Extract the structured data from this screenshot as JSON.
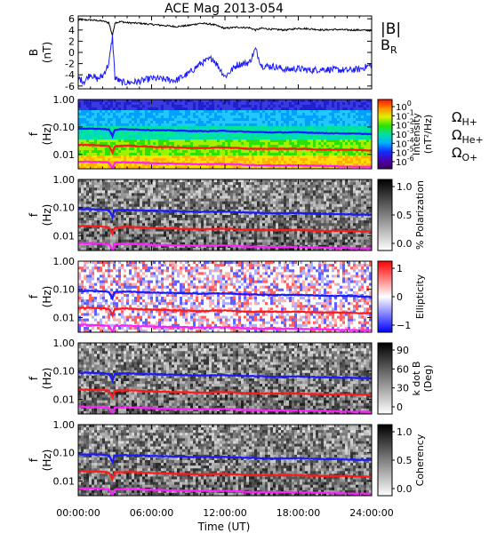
{
  "title": "ACE Mag 2013-054",
  "x_axis": {
    "label": "Time (UT)",
    "ticks": [
      "00:00:00",
      "06:00:00",
      "12:00:00",
      "18:00:00",
      "24:00:00"
    ],
    "tick_hours": [
      0,
      6,
      12,
      18,
      24
    ],
    "range_hours": [
      0,
      24
    ]
  },
  "colors": {
    "black": "#000000",
    "blue": "#1a1aff",
    "red": "#ff1a1a",
    "magenta": "#ff20ff",
    "panel_frame": "#000000"
  },
  "panels": [
    {
      "id": "bfield",
      "ylabel": "B",
      "yunit": "(nT)",
      "yticks": [
        "6",
        "4",
        "2",
        "0",
        "-2",
        "-4",
        "-6"
      ],
      "legend": [
        {
          "label": "|B|",
          "sub": "",
          "color": "#000000"
        },
        {
          "label": "B",
          "sub": "R",
          "color": "#1a1aff"
        }
      ]
    },
    {
      "id": "intensity",
      "ylabel": "f",
      "yunit": "(Hz)",
      "yticks": [
        "1.00",
        "0.10",
        "0.01"
      ],
      "colorbar": {
        "ticks": [
          {
            "base": "10",
            "exp": "0"
          },
          {
            "base": "10",
            "exp": "-1"
          },
          {
            "base": "10",
            "exp": "-2"
          },
          {
            "base": "10",
            "exp": "-3"
          },
          {
            "base": "10",
            "exp": "-4"
          },
          {
            "base": "10",
            "exp": "-5"
          },
          {
            "base": "10",
            "exp": "-6"
          }
        ],
        "label_line1": "Intensity",
        "label_line2": "(nT²/Hz)"
      },
      "legend": [
        {
          "label": "Ω",
          "sub": "H+",
          "color": "#1a1aff"
        },
        {
          "label": "Ω",
          "sub": "He+",
          "color": "#ff1a1a"
        },
        {
          "label": "Ω",
          "sub": "O+",
          "color": "#ff20ff"
        }
      ]
    },
    {
      "id": "polarization",
      "ylabel": "f",
      "yunit": "(Hz)",
      "yticks": [
        "1.00",
        "0.10",
        "0.01"
      ],
      "colorbar": {
        "ticks": [
          "1.0",
          "0.5",
          "0.0"
        ],
        "label_line1": "% Polarization",
        "label_line2": ""
      }
    },
    {
      "id": "ellipticity",
      "ylabel": "f",
      "yunit": "(Hz)",
      "yticks": [
        "1.00",
        "0.10",
        "0.01"
      ],
      "colorbar": {
        "ticks": [
          "1",
          "0",
          "−1"
        ],
        "label_line1": "Ellipticity",
        "label_line2": ""
      }
    },
    {
      "id": "kdotb",
      "ylabel": "f",
      "yunit": "(Hz)",
      "yticks": [
        "1.00",
        "0.10",
        "0.01"
      ],
      "colorbar": {
        "ticks": [
          "90",
          "60",
          "30",
          "0"
        ],
        "label_line1": "k dot B",
        "label_line2": "(Deg)"
      }
    },
    {
      "id": "coherency",
      "ylabel": "f",
      "yunit": "(Hz)",
      "yticks": [
        "1.00",
        "0.10",
        "0.01"
      ],
      "colorbar": {
        "ticks": [
          "1.0",
          "0.5",
          "0.0"
        ],
        "label_line1": "Coherency",
        "label_line2": ""
      }
    }
  ],
  "chart_data": [
    {
      "type": "line",
      "panel": "bfield",
      "xlabel": "Time (UT)",
      "ylabel": "B (nT)",
      "ylim": [
        -6.5,
        6.5
      ],
      "x_hours": [
        0,
        0.5,
        1,
        1.5,
        2,
        2.5,
        2.8,
        3,
        3.5,
        4,
        5,
        6,
        7,
        8,
        9,
        10,
        11,
        12,
        13,
        14,
        14.5,
        15,
        16,
        17,
        18,
        19,
        20,
        21,
        22,
        23,
        24
      ],
      "series": [
        {
          "name": "|B|",
          "values": [
            5.8,
            5.8,
            5.8,
            5.7,
            5.6,
            5.3,
            3.0,
            5.3,
            5.5,
            5.3,
            5.2,
            5.0,
            4.8,
            4.6,
            4.8,
            5.2,
            5.0,
            4.3,
            4.5,
            4.4,
            4.0,
            4.3,
            4.1,
            4.0,
            4.3,
            4.2,
            4.0,
            4.1,
            4.0,
            4.0,
            3.9
          ]
        },
        {
          "name": "B_R",
          "values": [
            -4.6,
            -5.2,
            -3.8,
            -4.8,
            -4.2,
            -2.0,
            2.8,
            -4.5,
            -5.3,
            -5.4,
            -5.2,
            -4.6,
            -4.8,
            -5.0,
            -3.8,
            -2.0,
            -1.0,
            -4.3,
            -2.2,
            -1.8,
            0.6,
            -2.4,
            -2.5,
            -3.1,
            -2.9,
            -3.2,
            -3.0,
            -3.1,
            -3.2,
            -3.0,
            -2.2
          ]
        }
      ]
    },
    {
      "type": "line",
      "panel": "spectrograms",
      "xlabel": "Time (UT)",
      "ylabel": "f (Hz)",
      "yscale": "log",
      "ylim": [
        0.003,
        1.0
      ],
      "x_hours": [
        0,
        1,
        2,
        2.5,
        2.8,
        3,
        4,
        6,
        8,
        10,
        12,
        14,
        16,
        18,
        20,
        22,
        24
      ],
      "series": [
        {
          "name": "Ω H+",
          "values": [
            0.088,
            0.087,
            0.085,
            0.08,
            0.046,
            0.08,
            0.083,
            0.077,
            0.074,
            0.07,
            0.072,
            0.066,
            0.063,
            0.064,
            0.06,
            0.058,
            0.055
          ]
        },
        {
          "name": "Ω He+",
          "values": [
            0.022,
            0.022,
            0.021,
            0.02,
            0.012,
            0.02,
            0.021,
            0.019,
            0.018,
            0.017,
            0.018,
            0.016,
            0.016,
            0.016,
            0.015,
            0.015,
            0.014
          ]
        },
        {
          "name": "Ω O+",
          "values": [
            0.0055,
            0.0054,
            0.0053,
            0.005,
            0.003,
            0.005,
            0.0052,
            0.0048,
            0.0046,
            0.0044,
            0.0045,
            0.0041,
            0.004,
            0.004,
            0.0038,
            0.0036,
            0.0035
          ]
        }
      ]
    }
  ]
}
